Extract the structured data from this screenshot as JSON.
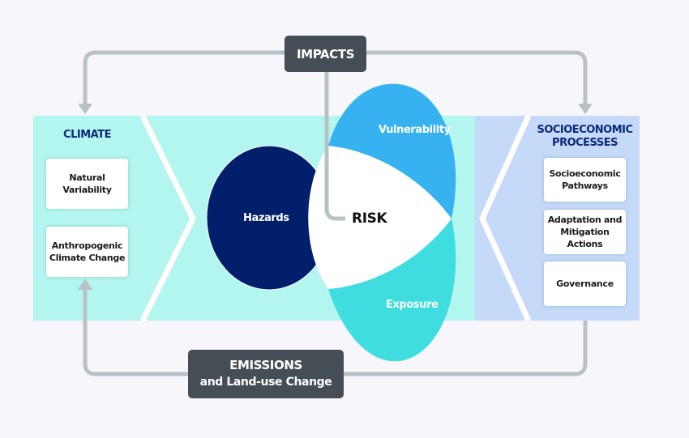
{
  "colors": {
    "background": "#f6f6fb",
    "climate_panel": "#b3f5ef",
    "socioeconomic_panel": "#c5d9f8",
    "hazards": "#021f6b",
    "vulnerability": "#36b2f0",
    "exposure": "#3fdde0",
    "risk": "#ffffff",
    "dark_box": "#454e55",
    "connector": "#b8c2c4",
    "heading": "#0b2a78"
  },
  "impacts": {
    "label": "IMPACTS"
  },
  "emissions": {
    "line1": "EMISSIONS",
    "line2": "and Land-use Change"
  },
  "climate": {
    "heading": "CLIMATE",
    "items": [
      "Natural\nVariability",
      "Anthropogenic\nClimate Change"
    ]
  },
  "socioeconomic": {
    "heading": "SOCIOECONOMIC\nPROCESSES",
    "items": [
      "Socioeconomic\nPathways",
      "Adaptation and\nMitigation\nActions",
      "Governance"
    ]
  },
  "risk_diagram": {
    "hazards": "Hazards",
    "vulnerability": "Vulnerability",
    "exposure": "Exposure",
    "risk": "RISK"
  }
}
